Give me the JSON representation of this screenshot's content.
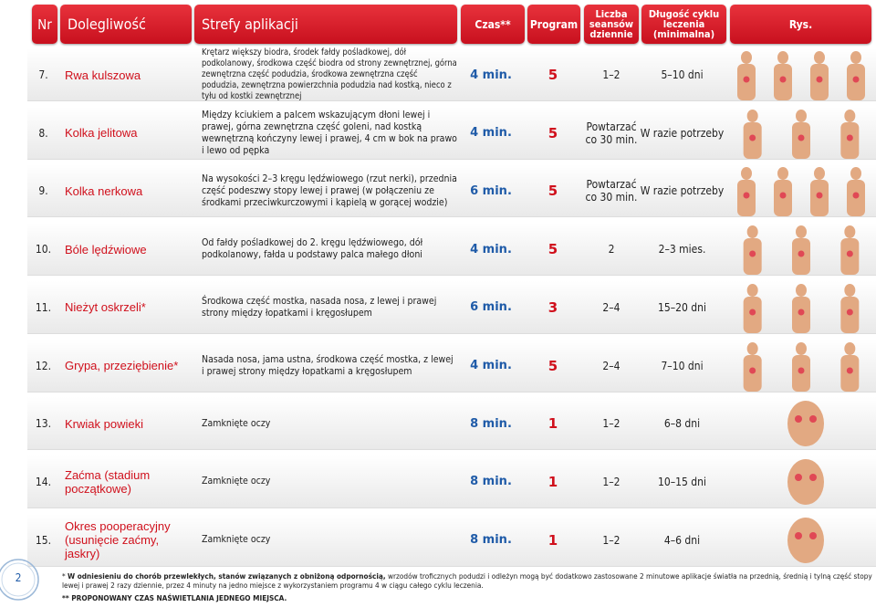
{
  "header": {
    "nr": "Nr",
    "condition": "Dolegliwość",
    "zones": "Strefy aplikacji",
    "time": "Czas**",
    "program": "Program",
    "sessions": "Liczba seansów dziennie",
    "duration": "Długość cyklu leczenia (minimalna)",
    "figure": "Rys."
  },
  "rows": [
    [
      "7.",
      "Rwa kulszowa",
      "Krętarz większy biodra, środek fałdy pośladkowej, dół podkolanowy, środkowa część biodra od strony zewnętrznej, górna zewnętrzna część podudzia, środkowa zewnętrzna część podudzia, zewnętrzna powierzchnia podudzia nad kostką, nieco z tyłu od kostki zewnętrznej",
      "4 min.",
      "5",
      "1–2",
      "5–10 dni"
    ],
    [
      "8.",
      "Kolka jelitowa",
      "Między kciukiem a palcem wskazującym dłoni lewej i prawej, górna zewnętrzna część goleni, nad kostką wewnętrzną kończyny lewej i prawej, 4 cm w bok na prawo i lewo od pępka",
      "4 min.",
      "5",
      "Powtarzać co 30 min.",
      "W razie potrzeby"
    ],
    [
      "9.",
      "Kolka nerkowa",
      "Na wysokości 2–3 kręgu lędźwiowego (rzut nerki), przednia część podeszwy stopy lewej i prawej (w połączeniu ze środkami przeciwkurczowymi i kąpielą w gorącej wodzie)",
      "6 min.",
      "5",
      "Powtarzać co 30 min.",
      "W razie potrzeby"
    ],
    [
      "10.",
      "Bóle lędźwiowe",
      "Od fałdy pośladkowej do 2. kręgu lędźwiowego, dół podkolanowy, fałda u podstawy palca małego dłoni",
      "4 min.",
      "5",
      "2",
      "2–3 mies."
    ],
    [
      "11.",
      "Nieżyt oskrzeli*",
      "Środkowa część mostka, nasada nosa, z lewej i prawej strony między łopatkami i kręgosłupem",
      "6 min.",
      "3",
      "2–4",
      "15–20 dni"
    ],
    [
      "12.",
      "Grypa, przeziębienie*",
      "Nasada nosa, jama ustna, środkowa część mostka, z lewej i prawej strony między łopatkami a kręgosłupem",
      "4 min.",
      "5",
      "2–4",
      "7–10 dni"
    ],
    [
      "13.",
      "Krwiak powieki",
      "Zamknięte oczy",
      "8 min.",
      "1",
      "1–2",
      "6–8 dni"
    ],
    [
      "14.",
      "Zaćma (stadium początkowe)",
      "Zamknięte oczy",
      "8 min.",
      "1",
      "1–2",
      "10–15 dni"
    ],
    [
      "15.",
      "Okres pooperacyjny (usunięcie zaćmy, jaskry)",
      "Zamknięte oczy",
      "8 min.",
      "1",
      "1–2",
      "4–6 dni"
    ]
  ],
  "footnotes": {
    "mark1": "*",
    "bold1": "W odniesieniu do chorób przewlekłych, stanów związanych z obniżoną odpornością,",
    "text1": "wrzodów troficznych podudzi i odleżyn mogą być dodatkowo zastosowane 2 minutowe aplikacje światła na przednią, średnią i tylną część stopy lewej i prawej 2 razy dziennie, przez 4 minuty na jedno miejsce z wykorzystaniem programu 4 w ciągu całego cyklu leczenia.",
    "text2": "** PROPONOWANY CZAS NAŚWIETLANIA JEDNEGO MIEJSCA."
  },
  "page_number": "2"
}
